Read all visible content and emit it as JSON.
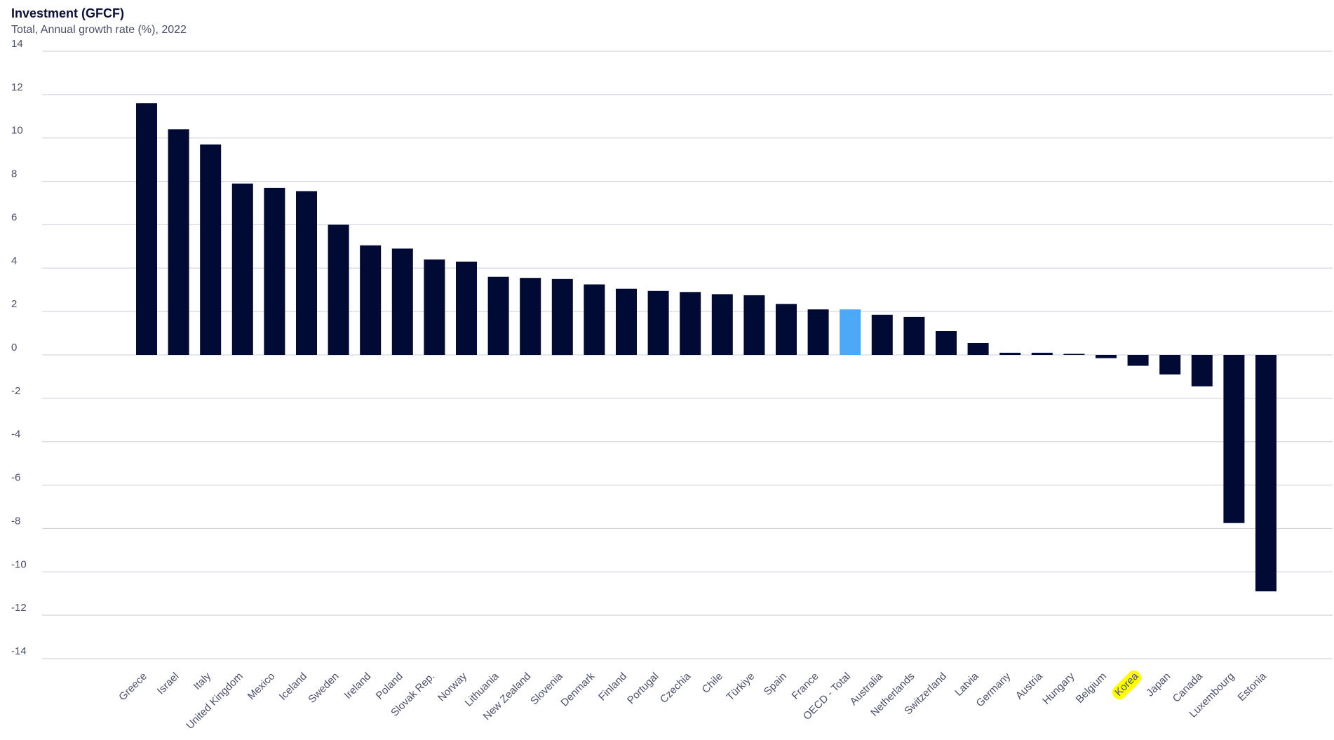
{
  "chart_data": {
    "type": "bar",
    "title": "Investment (GFCF)",
    "subtitle": "Total, Annual growth rate (%), 2022",
    "xlabel": "",
    "ylabel": "",
    "ylim": [
      -14,
      14
    ],
    "yticks": [
      14,
      12,
      10,
      8,
      6,
      4,
      2,
      0,
      -2,
      -4,
      -6,
      -8,
      -10,
      -12,
      -14
    ],
    "grid": true,
    "legend": "none",
    "bar_color": "#000a33",
    "highlight_color": "#4da9f7",
    "label_highlight_color": "#ffff00",
    "categories": [
      "Greece",
      "Israel",
      "Italy",
      "United Kingdom",
      "Mexico",
      "Iceland",
      "Sweden",
      "Ireland",
      "Poland",
      "Slovak Rep.",
      "Norway",
      "Lithuania",
      "New Zealand",
      "Slovenia",
      "Denmark",
      "Finland",
      "Portugal",
      "Czechia",
      "Chile",
      "Türkiye",
      "Spain",
      "France",
      "OECD - Total",
      "Australia",
      "Netherlands",
      "Switzerland",
      "Latvia",
      "Germany",
      "Austria",
      "Hungary",
      "Belgium",
      "Korea",
      "Japan",
      "Canada",
      "Luxembourg",
      "Estonia"
    ],
    "values": [
      11.6,
      10.4,
      9.7,
      7.9,
      7.7,
      7.55,
      6.0,
      5.05,
      4.9,
      4.4,
      4.3,
      3.6,
      3.55,
      3.5,
      3.25,
      3.05,
      2.95,
      2.9,
      2.8,
      2.75,
      2.35,
      2.1,
      2.1,
      1.85,
      1.75,
      1.1,
      0.55,
      0.1,
      0.1,
      0.05,
      -0.15,
      -0.5,
      -0.9,
      -1.45,
      -7.75,
      -10.9
    ],
    "highlighted_bar": "OECD - Total",
    "highlighted_label": "Korea"
  }
}
